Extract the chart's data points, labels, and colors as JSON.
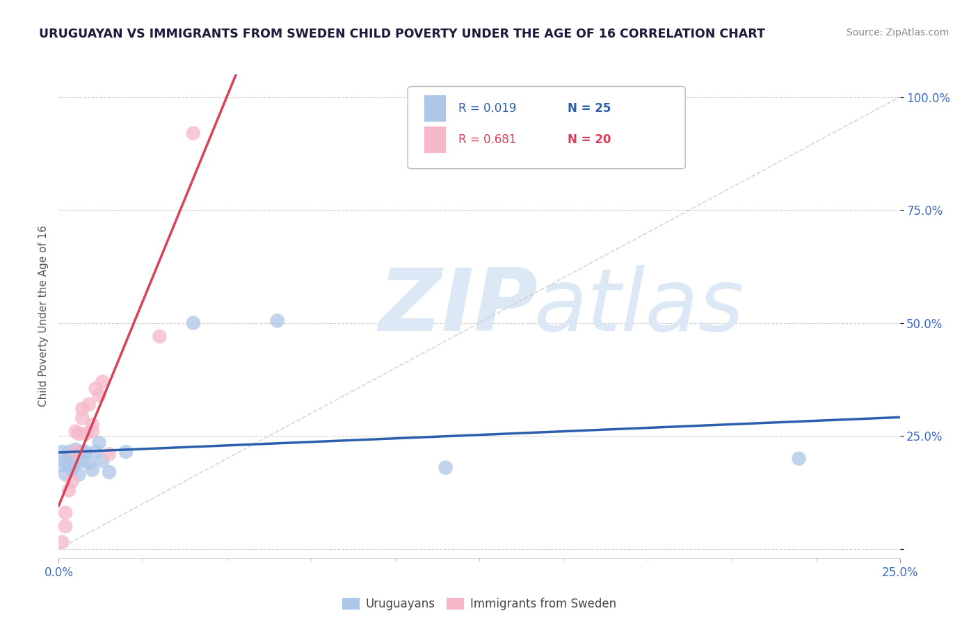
{
  "title": "URUGUAYAN VS IMMIGRANTS FROM SWEDEN CHILD POVERTY UNDER THE AGE OF 16 CORRELATION CHART",
  "source": "Source: ZipAtlas.com",
  "ylabel_label": "Child Poverty Under the Age of 16",
  "xlim": [
    0.0,
    0.25
  ],
  "ylim": [
    -0.02,
    1.05
  ],
  "y_tick_vals": [
    0.0,
    0.25,
    0.5,
    0.75,
    1.0
  ],
  "y_tick_labels": [
    "",
    "25.0%",
    "50.0%",
    "75.0%",
    "100.0%"
  ],
  "x_tick_vals": [
    0.0,
    0.25
  ],
  "x_tick_labels": [
    "0.0%",
    "25.0%"
  ],
  "legend_r1": "R = 0.019",
  "legend_n1": "N = 25",
  "legend_r2": "R = 0.681",
  "legend_n2": "N = 20",
  "uruguayan_color": "#aec6e8",
  "sweden_color": "#f5b8c8",
  "trendline_uruguayan_color": "#2b5fac",
  "trendline_sweden_color": "#d9405a",
  "watermark_zip": "ZIP",
  "watermark_atlas": "atlas",
  "watermark_color": "#dce8f5",
  "uruguayan_x": [
    0.001,
    0.001,
    0.002,
    0.002,
    0.003,
    0.003,
    0.004,
    0.004,
    0.005,
    0.005,
    0.006,
    0.007,
    0.007,
    0.008,
    0.009,
    0.01,
    0.011,
    0.012,
    0.013,
    0.015,
    0.02,
    0.04,
    0.065,
    0.115,
    0.22
  ],
  "uruguayan_y": [
    0.215,
    0.185,
    0.195,
    0.165,
    0.215,
    0.185,
    0.175,
    0.205,
    0.19,
    0.22,
    0.165,
    0.195,
    0.215,
    0.215,
    0.19,
    0.175,
    0.215,
    0.235,
    0.195,
    0.17,
    0.215,
    0.5,
    0.505,
    0.18,
    0.2
  ],
  "sweden_x": [
    0.001,
    0.002,
    0.002,
    0.003,
    0.004,
    0.005,
    0.005,
    0.006,
    0.007,
    0.007,
    0.008,
    0.009,
    0.01,
    0.01,
    0.011,
    0.012,
    0.013,
    0.015,
    0.03,
    0.04
  ],
  "sweden_y": [
    0.015,
    0.05,
    0.08,
    0.13,
    0.15,
    0.215,
    0.26,
    0.255,
    0.29,
    0.31,
    0.255,
    0.32,
    0.26,
    0.275,
    0.355,
    0.34,
    0.37,
    0.21,
    0.47,
    0.92
  ],
  "background_color": "#ffffff",
  "grid_color": "#d0d0d0"
}
